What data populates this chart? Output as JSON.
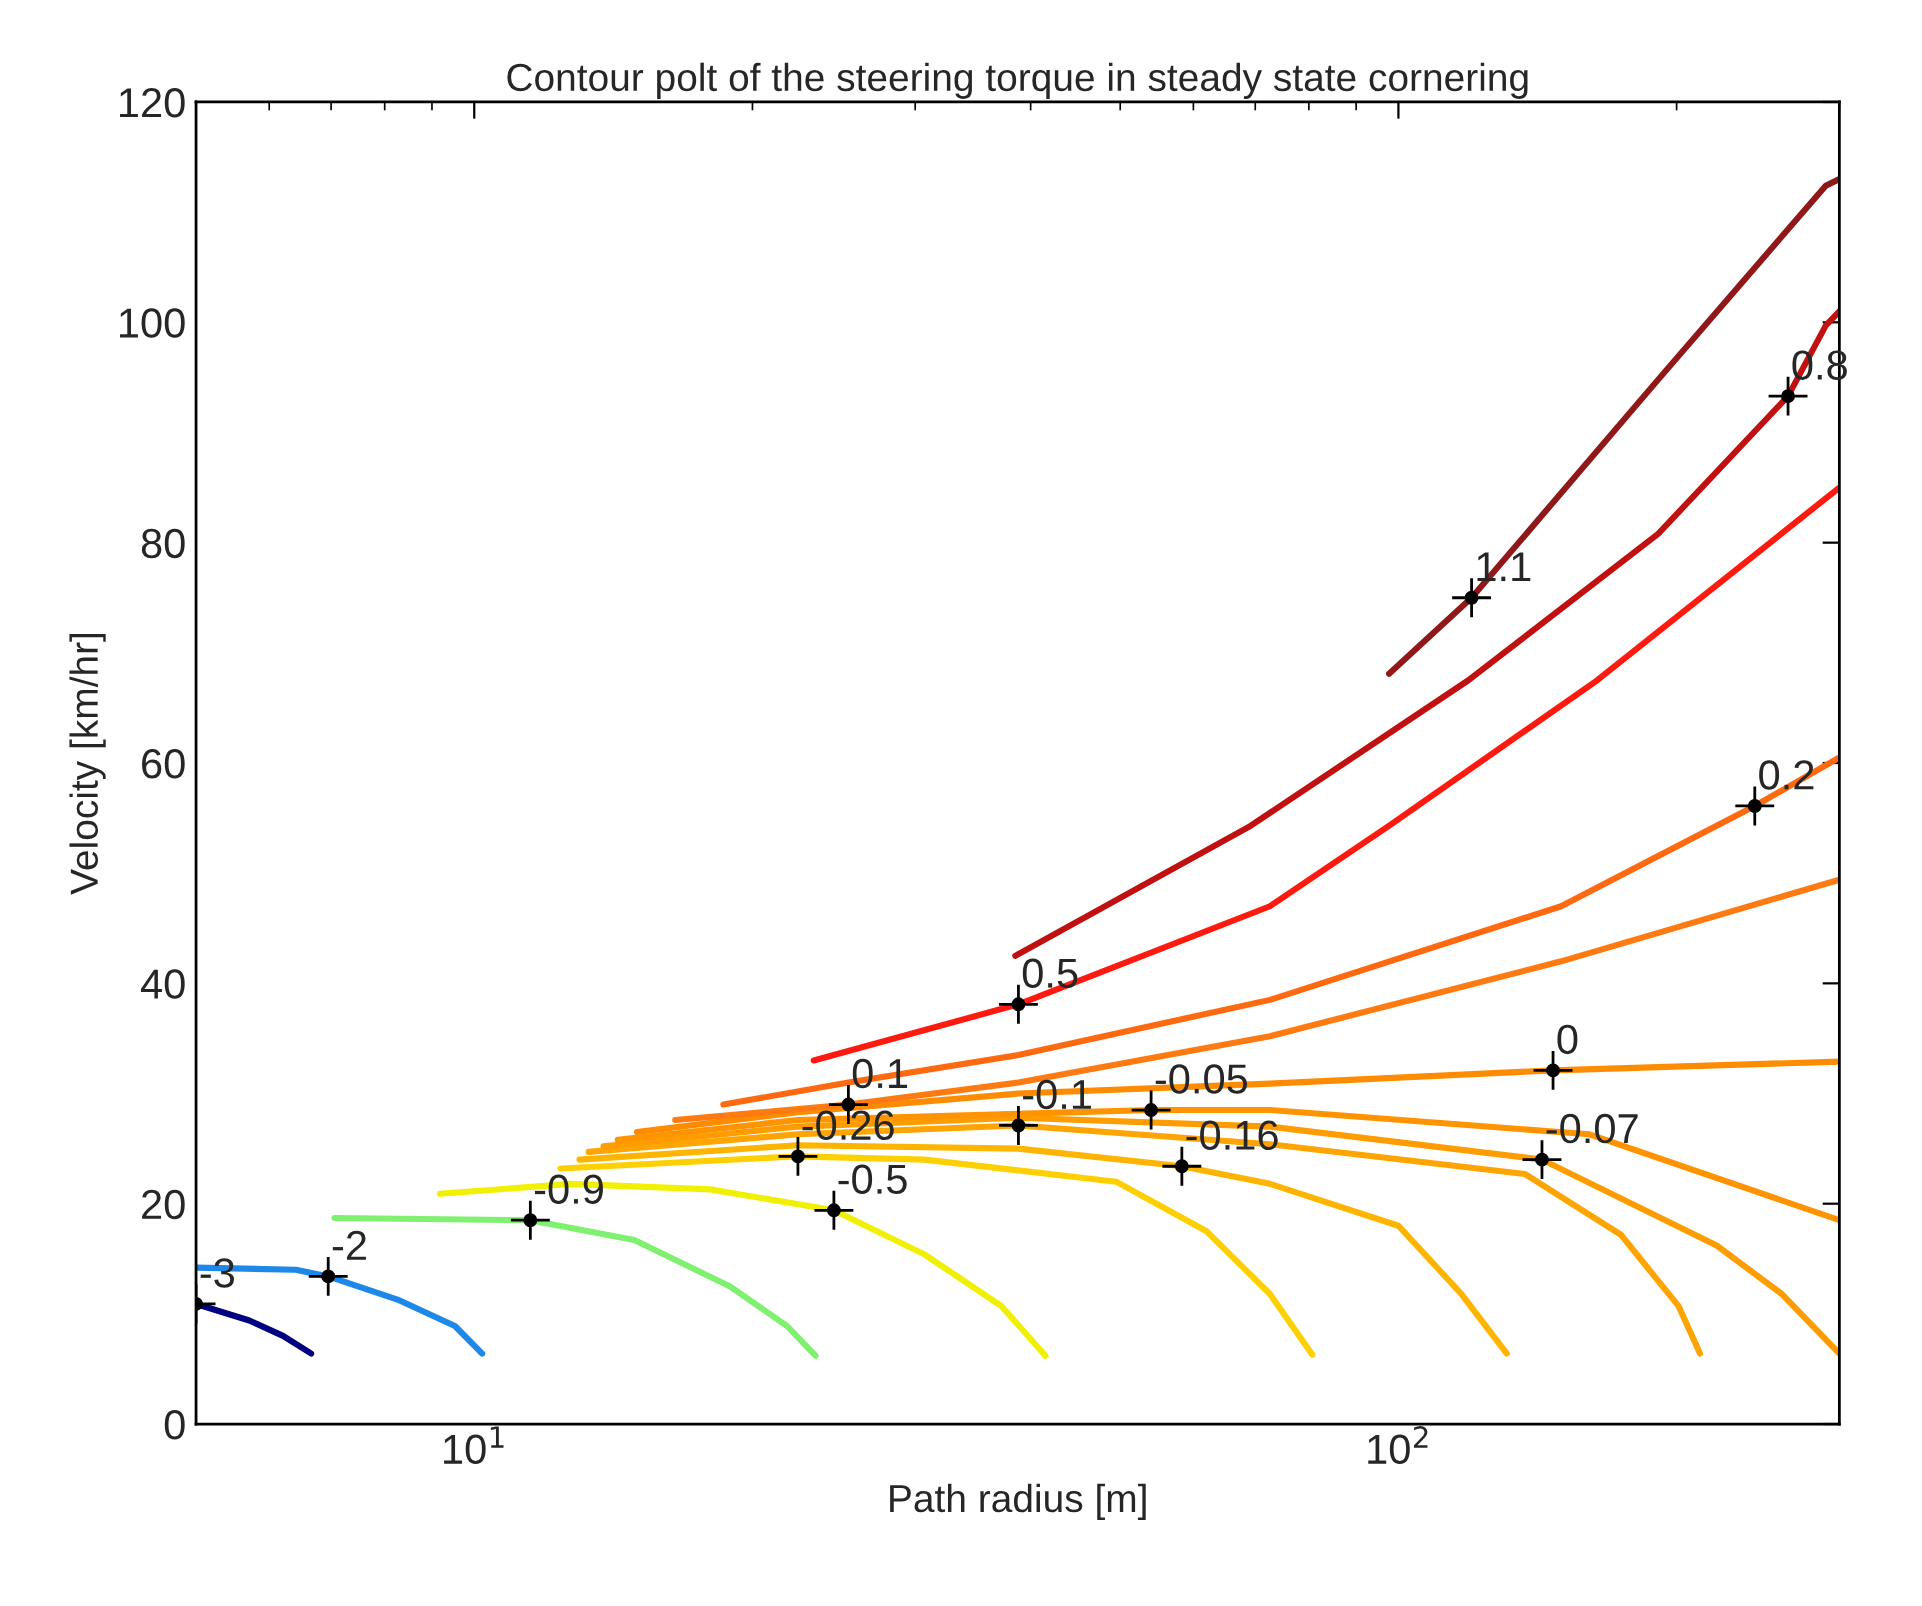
{
  "chart_data": {
    "type": "line",
    "title": "Contour polt of the steering torque in steady state cornering",
    "xlabel": "Path radius [m]",
    "ylabel": "Velocity [km/hr]",
    "log": "x",
    "xlim": [
      5,
      300
    ],
    "xticks": [
      {
        "value": 10,
        "label": "10$^{1}$"
      },
      {
        "value": 100,
        "label": "10$^{2}$"
      }
    ],
    "ylim": [
      0,
      120
    ],
    "yticks": [
      0,
      20,
      40,
      60,
      80,
      100,
      120
    ],
    "grid": false,
    "legend": false,
    "series": [
      {
        "color": "#000080",
        "x": [
          5.0,
          5.71,
          6.21,
          6.66
        ],
        "values": [
          10.9,
          9.4,
          8.0,
          6.4
        ]
      },
      {
        "color": "#1e88e8",
        "x": [
          5.0,
          6.41,
          6.95,
          8.26,
          9.53,
          10.2
        ],
        "values": [
          14.2,
          14.0,
          13.4,
          11.3,
          8.9,
          6.4
        ]
      },
      {
        "color": "#80f070",
        "x": [
          7.06,
          11.5,
          14.9,
          18.9,
          21.8,
          23.4
        ],
        "values": [
          18.7,
          18.5,
          16.7,
          12.5,
          8.9,
          6.2
        ]
      },
      {
        "color": "#f0f000",
        "x": [
          9.18,
          12.7,
          18.0,
          24.5,
          30.7,
          37.2,
          41.5
        ],
        "values": [
          20.9,
          21.8,
          21.3,
          19.4,
          15.4,
          10.7,
          6.2
        ]
      },
      {
        "color": "#ffd000",
        "x": [
          12.4,
          22.4,
          30.7,
          49.5,
          62.0,
          72.6,
          80.7
        ],
        "values": [
          23.2,
          24.3,
          24.0,
          22.0,
          17.5,
          11.8,
          6.3
        ]
      },
      {
        "color": "#ffb400",
        "x": [
          13.0,
          22.4,
          38.8,
          58.3,
          72.6,
          100,
          117,
          131
        ],
        "values": [
          24.0,
          25.3,
          25.0,
          23.4,
          21.8,
          18.0,
          11.8,
          6.4
        ]
      },
      {
        "color": "#ffa400",
        "x": [
          13.3,
          22.4,
          38.8,
          72.6,
          137,
          174,
          201,
          212
        ],
        "values": [
          24.7,
          26.3,
          27.1,
          25.4,
          22.7,
          17.2,
          10.7,
          6.4
        ]
      },
      {
        "color": "#ff9c00",
        "x": [
          13.8,
          22.4,
          38.8,
          72.6,
          143,
          221,
          260,
          300
        ],
        "values": [
          25.2,
          27.0,
          27.8,
          27.0,
          24.0,
          16.2,
          11.8,
          6.4
        ]
      },
      {
        "color": "#ff9400",
        "x": [
          14.3,
          22.4,
          54.0,
          72.6,
          161,
          300
        ],
        "values": [
          25.8,
          27.6,
          28.5,
          28.5,
          26.3,
          18.5
        ]
      },
      {
        "color": "#ff8c00",
        "x": [
          15.0,
          22.4,
          38.8,
          72.6,
          147,
          300
        ],
        "values": [
          26.5,
          28.3,
          30.0,
          30.9,
          32.1,
          32.9
        ]
      },
      {
        "color": "#ff7a10",
        "x": [
          16.5,
          25.4,
          38.8,
          72.6,
          150,
          300
        ],
        "values": [
          27.6,
          29.0,
          31.0,
          35.2,
          42.0,
          49.4
        ]
      },
      {
        "color": "#ff6a10",
        "x": [
          18.6,
          25.4,
          38.8,
          72.6,
          150,
          243,
          300
        ],
        "values": [
          29.0,
          31.0,
          33.5,
          38.5,
          47.0,
          56.1,
          60.5
        ]
      },
      {
        "color": "#ff1a10",
        "x": [
          23.3,
          38.8,
          72.6,
          97.7,
          164,
          300
        ],
        "values": [
          33.0,
          38.1,
          47.0,
          54.3,
          67.5,
          85.0
        ]
      },
      {
        "color": "#c01010",
        "x": [
          38.5,
          69.2,
          119,
          191,
          264,
          290,
          300
        ],
        "values": [
          42.5,
          54.3,
          67.5,
          80.8,
          93.3,
          99.7,
          101.0
        ]
      },
      {
        "color": "#901818",
        "x": [
          97.7,
          120,
          191,
          290,
          300
        ],
        "values": [
          68.1,
          75.0,
          94.8,
          112.4,
          113.0
        ]
      }
    ],
    "annotations": [
      {
        "text": "-3",
        "x": 5.0,
        "y": 10.9
      },
      {
        "text": "-2",
        "x": 6.95,
        "y": 13.4
      },
      {
        "text": "-0.9",
        "x": 11.5,
        "y": 18.5
      },
      {
        "text": "-0.5",
        "x": 24.5,
        "y": 19.4
      },
      {
        "text": "-0.26",
        "x": 22.4,
        "y": 24.3
      },
      {
        "text": "0.1",
        "x": 25.4,
        "y": 29.0
      },
      {
        "text": "-0.1",
        "x": 38.8,
        "y": 27.1
      },
      {
        "text": "-0.05",
        "x": 54.0,
        "y": 28.5
      },
      {
        "text": "-0.16",
        "x": 58.3,
        "y": 23.4
      },
      {
        "text": "0",
        "x": 147,
        "y": 32.1
      },
      {
        "text": "-0.07",
        "x": 143,
        "y": 24.0
      },
      {
        "text": "0.5",
        "x": 38.8,
        "y": 38.1
      },
      {
        "text": "0.2",
        "x": 243,
        "y": 56.1
      },
      {
        "text": "0.8",
        "x": 264,
        "y": 93.3
      },
      {
        "text": "1.1",
        "x": 120,
        "y": 75.0
      }
    ]
  }
}
